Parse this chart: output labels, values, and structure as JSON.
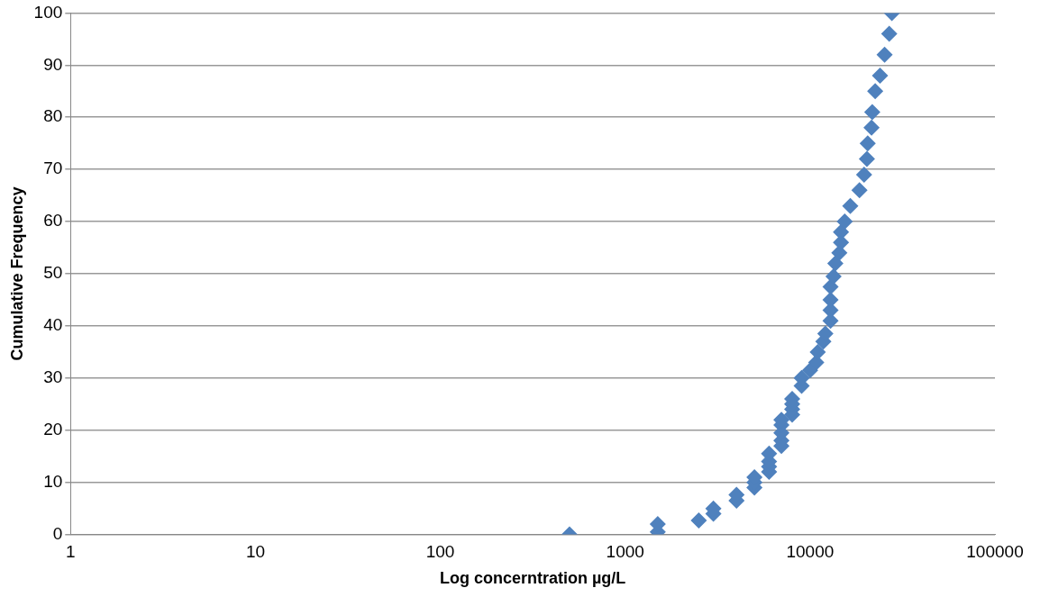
{
  "chart_data": {
    "type": "scatter",
    "xlabel": "Log concerntration µg/L",
    "ylabel": "Cumulative Frequency",
    "log": "x",
    "grid": "y",
    "marker": "diamond",
    "legend": false,
    "xlim": [
      1,
      100000
    ],
    "xticks": [
      1,
      10,
      100,
      1000,
      10000,
      100000
    ],
    "ylim": [
      0,
      100
    ],
    "yticks": [
      0,
      10,
      20,
      30,
      40,
      50,
      60,
      70,
      80,
      90,
      100
    ],
    "series": [
      {
        "color": "#4f81bd",
        "x": [
          500,
          1500,
          1500,
          2500,
          3000,
          3000,
          4000,
          4000,
          5000,
          5000,
          5000,
          6000,
          6000,
          6000,
          6000,
          7000,
          7000,
          7000,
          7000,
          7000,
          8000,
          8000,
          8000,
          8000,
          9000,
          9000,
          10000,
          10800,
          11000,
          11800,
          12100,
          12900,
          12900,
          12900,
          12900,
          13400,
          13700,
          14400,
          14700,
          14700,
          15400,
          16500,
          18500,
          19600,
          20300,
          20500,
          21500,
          21700,
          22500,
          23900,
          25300,
          26800,
          27700
        ],
        "values": [
          0,
          0.5,
          2,
          2.7,
          4,
          5,
          6.5,
          7.6,
          9,
          10,
          11,
          12,
          13,
          14,
          15.5,
          17,
          18,
          19.5,
          21,
          22,
          23,
          24,
          25,
          26,
          28.5,
          30,
          31.5,
          33,
          35,
          37,
          38.5,
          41,
          43,
          45,
          47.5,
          49.5,
          52,
          54,
          56,
          58,
          60,
          63,
          66,
          69,
          72,
          75,
          78,
          81,
          85,
          88,
          92,
          96,
          100
        ]
      }
    ]
  }
}
